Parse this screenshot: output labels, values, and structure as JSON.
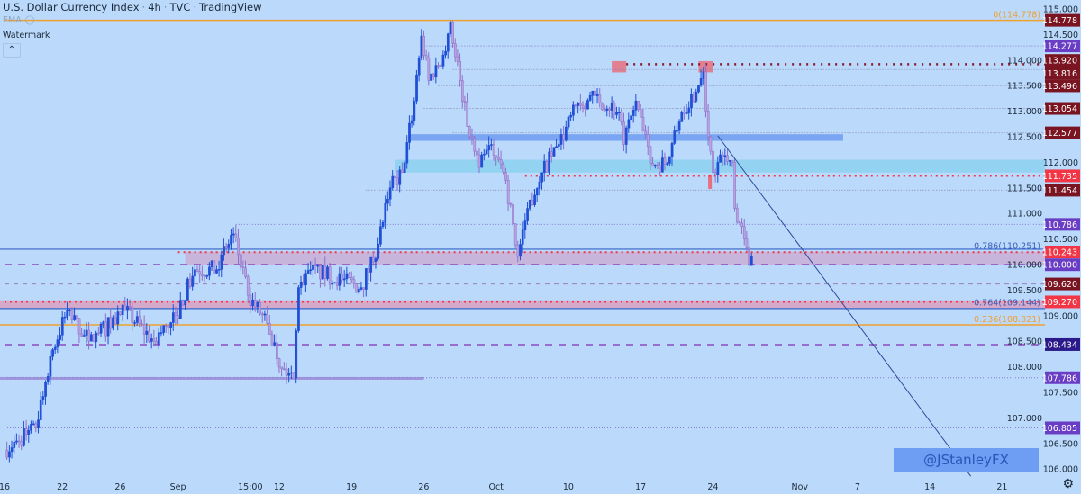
{
  "header": {
    "symbol": "U.S. Dollar Currency Index",
    "interval": "4h",
    "exchange": "TVC",
    "source": "TradingView",
    "indicator": "EMA",
    "watermark_label": "Watermark",
    "collapse_icon": "chevron-up-icon",
    "settings_icon": "gear-icon"
  },
  "watermark_tag": "@JStanleyFX",
  "colors": {
    "background": "#bad9fb",
    "up_candle": "#1f4fd6",
    "down_candle": "#b8a2dd",
    "down_border": "#8e6fc9",
    "dark_red_label": "#7a1420",
    "bright_red_label": "#f23645",
    "purple_label": "#6a3ec4",
    "navy_label": "#2b1a8a",
    "fib_orange": "#f0a030",
    "fib_blue": "#3c5fb8"
  },
  "chart_data": {
    "type": "candlestick",
    "title": "U.S. Dollar Currency Index · 4h · TVC",
    "ylim": [
      106.0,
      115.0
    ],
    "y_ticks": [
      "115.000",
      "114.500",
      "114.000",
      "113.500",
      "113.000",
      "112.500",
      "112.000",
      "111.500",
      "111.000",
      "110.500",
      "110.000",
      "109.500",
      "109.000",
      "108.500",
      "108.000",
      "107.500",
      "107.000",
      "106.500",
      "106.000"
    ],
    "x_ticks": [
      {
        "label": "16",
        "date": "2022-08-16"
      },
      {
        "label": "22",
        "date": "2022-08-22"
      },
      {
        "label": "26",
        "date": "2022-08-26"
      },
      {
        "label": "Sep",
        "date": "2022-09-01"
      },
      {
        "label": "15:00",
        "date": "2022-09-08"
      },
      {
        "label": "12",
        "date": "2022-09-12"
      },
      {
        "label": "19",
        "date": "2022-09-19"
      },
      {
        "label": "26",
        "date": "2022-09-26"
      },
      {
        "label": "Oct",
        "date": "2022-10-03"
      },
      {
        "label": "10",
        "date": "2022-10-10"
      },
      {
        "label": "17",
        "date": "2022-10-17"
      },
      {
        "label": "24",
        "date": "2022-10-24"
      },
      {
        "label": "Nov",
        "date": "2022-11-01"
      },
      {
        "label": "7",
        "date": "2022-11-07"
      },
      {
        "label": "14",
        "date": "2022-11-14"
      },
      {
        "label": "21",
        "date": "2022-11-21"
      }
    ],
    "price_path": [
      [
        "2022-08-16 00:00",
        106.37
      ],
      [
        "2022-08-16 20:00",
        106.55
      ],
      [
        "2022-08-18 04:00",
        106.8
      ],
      [
        "2022-08-19 04:00",
        108.2
      ],
      [
        "2022-08-22 08:00",
        109.1
      ],
      [
        "2022-08-23 20:00",
        108.5
      ],
      [
        "2022-08-26 08:00",
        109.1
      ],
      [
        "2022-08-30 08:00",
        108.5
      ],
      [
        "2022-08-31 20:00",
        109.0
      ],
      [
        "2022-09-02 04:00",
        109.9
      ],
      [
        "2022-09-05 16:00",
        109.9
      ],
      [
        "2022-09-06 20:00",
        110.6
      ],
      [
        "2022-09-07 20:00",
        109.4
      ],
      [
        "2022-09-09 04:00",
        108.85
      ],
      [
        "2022-09-12 04:00",
        107.96
      ],
      [
        "2022-09-13 00:00",
        107.78
      ],
      [
        "2022-09-13 08:00",
        109.55
      ],
      [
        "2022-09-14 04:00",
        109.9
      ],
      [
        "2022-09-16 08:00",
        109.7
      ],
      [
        "2022-09-19 16:00",
        109.55
      ],
      [
        "2022-09-20 20:00",
        110.4
      ],
      [
        "2022-09-21 16:00",
        111.5
      ],
      [
        "2022-09-22 12:00",
        111.8
      ],
      [
        "2022-09-23 08:00",
        113.2
      ],
      [
        "2022-09-23 20:00",
        114.47
      ],
      [
        "2022-09-26 08:00",
        113.6
      ],
      [
        "2022-09-27 08:00",
        114.1
      ],
      [
        "2022-09-27 20:00",
        114.74
      ],
      [
        "2022-09-28 12:00",
        113.6
      ],
      [
        "2022-09-29 04:00",
        112.5
      ],
      [
        "2022-09-29 20:00",
        111.9
      ],
      [
        "2022-09-30 16:00",
        112.35
      ],
      [
        "2022-10-03 16:00",
        111.65
      ],
      [
        "2022-10-04 12:00",
        110.16
      ],
      [
        "2022-10-05 04:00",
        111.1
      ],
      [
        "2022-10-06 04:00",
        111.8
      ],
      [
        "2022-10-07 08:00",
        112.35
      ],
      [
        "2022-10-10 16:00",
        113.15
      ],
      [
        "2022-10-11 20:00",
        113.3
      ],
      [
        "2022-10-13 12:00",
        112.98
      ],
      [
        "2022-10-13 20:00",
        112.35
      ],
      [
        "2022-10-14 16:00",
        113.2
      ],
      [
        "2022-10-17 16:00",
        111.98
      ],
      [
        "2022-10-18 20:00",
        111.98
      ],
      [
        "2022-10-19 20:00",
        112.98
      ],
      [
        "2022-10-21 00:00",
        113.5
      ],
      [
        "2022-10-21 08:00",
        113.77
      ],
      [
        "2022-10-21 16:00",
        112.5
      ],
      [
        "2022-10-24 00:00",
        111.8
      ],
      [
        "2022-10-24 16:00",
        112.1
      ],
      [
        "2022-10-25 08:00",
        112.0
      ],
      [
        "2022-10-25 12:00",
        111.1
      ],
      [
        "2022-10-26 04:00",
        110.5
      ],
      [
        "2022-10-26 12:00",
        109.98
      ],
      [
        "2022-10-26 16:00",
        110.16
      ]
    ],
    "levels": [
      {
        "price": 114.778,
        "label": "114.778",
        "bg": "#7a1420",
        "style": "fib-orange",
        "from": "2022-08-16"
      },
      {
        "price": 114.277,
        "label": "114.277",
        "bg": "#6a3ec4",
        "style": "dotted-purple",
        "from": "2022-09-26"
      },
      {
        "price": 113.92,
        "label": "113.920",
        "bg": "#7a1420",
        "style": "dotted-darkred",
        "from": "2022-10-14"
      },
      {
        "price": 113.816,
        "label": "113.816",
        "bg": "#7a1420",
        "style": "dotted-grey",
        "from": "2022-09-28"
      },
      {
        "price": 113.496,
        "label": "113.496",
        "bg": "#7a1420",
        "style": "dotted-grey",
        "from": "2022-09-27"
      },
      {
        "price": 113.054,
        "label": "113.054",
        "bg": "#7a1420",
        "style": "dotted-grey",
        "from": "2022-09-26"
      },
      {
        "price": 112.577,
        "label": "112.577",
        "bg": "#7a1420",
        "style": "dotted-grey",
        "from": "2022-09-28"
      },
      {
        "price": 111.735,
        "label": "111.735",
        "bg": "#f23645",
        "style": "dotted-red",
        "from": "2022-10-05"
      },
      {
        "price": 111.454,
        "label": "111.454",
        "bg": "#7a1420",
        "style": "dotted-grey",
        "from": "2022-09-20"
      },
      {
        "price": 110.786,
        "label": "110.786",
        "bg": "#6a3ec4",
        "style": "dotted-purple",
        "from": "2022-09-07"
      },
      {
        "price": 110.243,
        "label": "110.243",
        "bg": "#f23645",
        "style": "dotted-red",
        "from": "2022-09-01"
      },
      {
        "price": 110.0,
        "label": "110.000",
        "bg": "#6a3ec4",
        "style": "dashed-purple",
        "from": "2022-08-16"
      },
      {
        "price": 109.62,
        "label": "109.620",
        "bg": "#7a1420",
        "style": "dashed-grey",
        "from": "2022-08-16"
      },
      {
        "price": 109.27,
        "label": "109.270",
        "bg": "#f23645",
        "style": "dotted-red",
        "from": "2022-08-16"
      },
      {
        "price": 108.434,
        "label": "108.434",
        "bg": "#2b1a8a",
        "style": "dashed-purple",
        "from": "2022-08-16"
      },
      {
        "price": 107.786,
        "label": "107.786",
        "bg": "#6a3ec4",
        "style": "dotted-purple",
        "from": "2022-08-16"
      },
      {
        "price": 106.805,
        "label": "106.805",
        "bg": "#6a3ec4",
        "style": "dotted-purple",
        "from": "2022-08-16"
      }
    ],
    "fib_labels": [
      {
        "text": "0(114.778)",
        "price": 114.778,
        "color": "#f0a030"
      },
      {
        "text": "0.786(110.251)",
        "price": 110.251,
        "color": "#3c5fb8"
      },
      {
        "text": "0.764(109.144)",
        "price": 109.144,
        "color": "#3c5fb8"
      },
      {
        "text": "0.236(108.821)",
        "price": 108.821,
        "color": "#f0a030"
      }
    ],
    "zones": [
      {
        "top": 112.55,
        "bottom": 112.42,
        "from": "2022-09-23",
        "to": "2022-11-04",
        "color": "#6f9bf0"
      },
      {
        "top": 112.05,
        "bottom": 111.8,
        "from": "2022-09-22",
        "to": "end",
        "color": "#8dd0f0"
      },
      {
        "top": 110.25,
        "bottom": 110.0,
        "from": "2022-09-01 12:00",
        "to": "end",
        "color": "#c9aed6"
      },
      {
        "top": 109.3,
        "bottom": 109.15,
        "from": "start",
        "to": "end",
        "color": "#d9a0bf"
      },
      {
        "top": 107.8,
        "bottom": 107.76,
        "from": "start",
        "to": "2022-09-26",
        "color": "#9a8ad8"
      },
      {
        "top": 113.98,
        "bottom": 113.76,
        "from": "2022-10-13 00:00",
        "to": "2022-10-13 24:00",
        "color": "#e8707e"
      },
      {
        "top": 113.98,
        "bottom": 113.76,
        "from": "2022-10-21 00:00",
        "to": "2022-10-21 24:00",
        "color": "#e8707e"
      },
      {
        "top": 111.75,
        "bottom": 111.48,
        "from": "2022-10-21 16:00",
        "to": "2022-10-21 22:00",
        "color": "#f05a6a"
      }
    ],
    "trendline": {
      "from": [
        "2022-10-24 08:00",
        112.52
      ],
      "to": [
        "2022-11-16 20:00",
        105.86
      ],
      "color": "#2b4a9a"
    },
    "support_line": {
      "price": 110.3,
      "color": "#3a64c8"
    }
  }
}
